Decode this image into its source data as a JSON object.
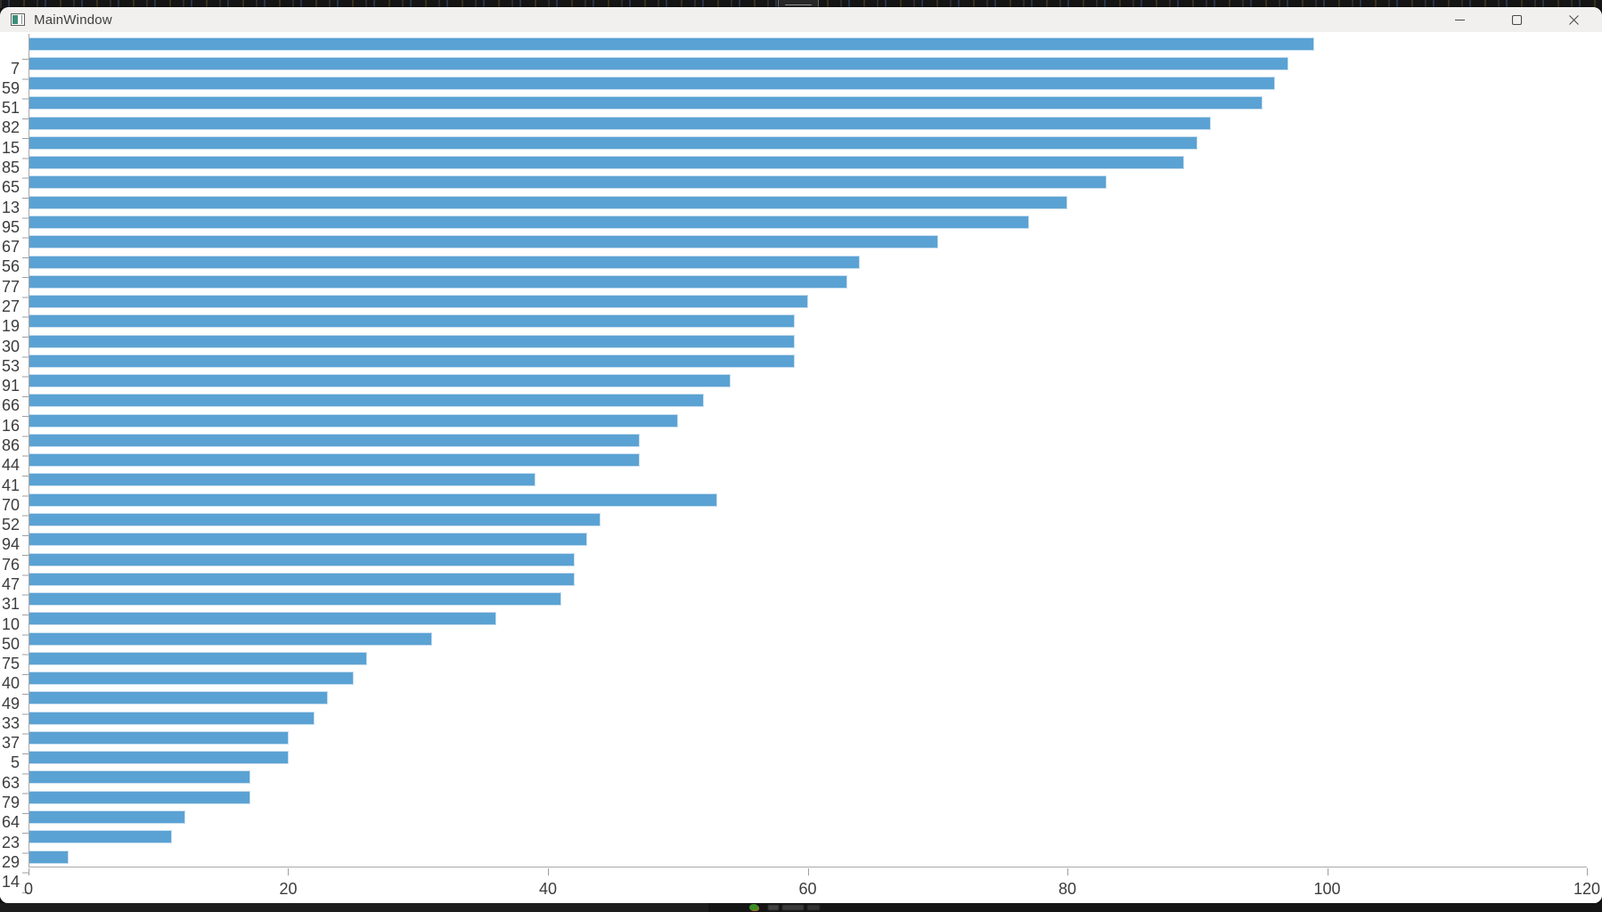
{
  "window": {
    "title": "MainWindow",
    "controls": {
      "minimize": "minimize",
      "maximize": "maximize",
      "close": "close"
    }
  },
  "chart_data": {
    "type": "bar",
    "orientation": "horizontal",
    "title": "",
    "xlabel": "",
    "ylabel": "",
    "categories": [
      "7",
      "59",
      "51",
      "82",
      "15",
      "85",
      "65",
      "13",
      "95",
      "67",
      "56",
      "77",
      "27",
      "19",
      "30",
      "53",
      "91",
      "66",
      "16",
      "86",
      "44",
      "41",
      "70",
      "52",
      "94",
      "76",
      "47",
      "31",
      "10",
      "50",
      "75",
      "40",
      "49",
      "33",
      "37",
      "5",
      "63",
      "79",
      "64",
      "23",
      "29",
      "14"
    ],
    "values": [
      99,
      97,
      96,
      95,
      91,
      90,
      89,
      83,
      80,
      77,
      70,
      64,
      63,
      60,
      59,
      59,
      59,
      54,
      52,
      50,
      47,
      47,
      39,
      53,
      44,
      43,
      42,
      42,
      41,
      36,
      31,
      26,
      25,
      23,
      22,
      20,
      20,
      17,
      17,
      12,
      11,
      3
    ],
    "x_ticks": [
      0,
      20,
      40,
      60,
      80,
      100,
      120
    ],
    "xlim": [
      0,
      120
    ],
    "grid": false,
    "legend": false,
    "bar_color": "#5AA2D3",
    "bar_border_color": "#C6DDF0",
    "axis_color": "#9E9E9E",
    "label_color": "#3C3C3C",
    "background_color": "#FFFFFF",
    "titlebar_color": "#F1F0EF"
  }
}
